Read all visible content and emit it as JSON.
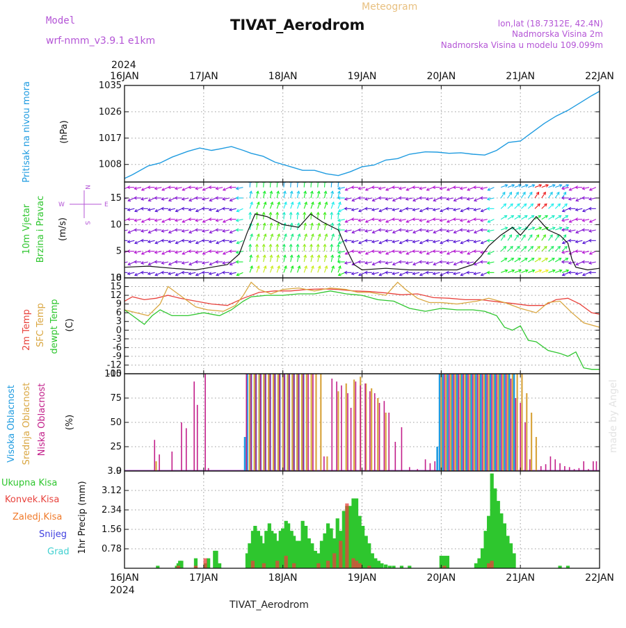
{
  "header": {
    "model_label": "Model",
    "model_name": "wrf-nmm_v3.9.1  e1km",
    "meteogram": "Meteogram",
    "title": "TIVAT_Aerodrom",
    "lonlat": "lon,lat (18.7312E, 42.4N)",
    "elevation": "Nadmorska Visina 2m",
    "model_elevation": "Nadmorska Visina u modelu 109.099m",
    "year_top": "2024",
    "year_bottom": "2024",
    "footer": "TIVAT_Aerodrom",
    "watermark": "made by Angel"
  },
  "colors": {
    "pressure": "#1e9be0",
    "temp2m": "#e8423c",
    "sfctemp": "#d9a640",
    "dewpt": "#2ec62e",
    "high_cloud": "#1e9be0",
    "mid_cloud": "#d9a640",
    "low_cloud": "#c21f8a",
    "total_precip": "#2ec62e",
    "conv_precip": "#e8423c",
    "frozen": "#f07a2a",
    "snow": "#4040e0",
    "graupel": "#40d0d0",
    "label_purple": "#b455d6",
    "meteogram_orange": "#e8c080"
  },
  "chart_data": [
    {
      "type": "line",
      "id": "pressure",
      "ylabel": [
        "Pritisak na nivou mora",
        "(hPa)"
      ],
      "x_ticks": [
        "16JAN",
        "17JAN",
        "18JAN",
        "19JAN",
        "20JAN",
        "21JAN",
        "22JAN"
      ],
      "ylim": [
        1002,
        1035
      ],
      "y_ticks": [
        1008,
        1017,
        1026,
        1035
      ],
      "grid": true,
      "series": [
        {
          "x": [
            0,
            0.1,
            0.3,
            0.45,
            0.6,
            0.8,
            0.95,
            1.1,
            1.2,
            1.35,
            1.5,
            1.6,
            1.75,
            1.9,
            2.1,
            2.25,
            2.4,
            2.55,
            2.7,
            2.85,
            3.0,
            3.15,
            3.3,
            3.45,
            3.6,
            3.8,
            3.95,
            4.1,
            4.25,
            4.4,
            4.55,
            4.7,
            4.85,
            5.0,
            5.15,
            5.3,
            5.45,
            5.6,
            5.75,
            5.9,
            6.0
          ],
          "values": [
            1003.2,
            1004.5,
            1007.5,
            1008.5,
            1010.5,
            1012.5,
            1013.6,
            1012.8,
            1013.3,
            1014.1,
            1012.8,
            1011.8,
            1010.8,
            1008.8,
            1007.2,
            1006.0,
            1006.0,
            1004.8,
            1004.2,
            1005.5,
            1007.2,
            1007.8,
            1009.5,
            1010.0,
            1011.5,
            1012.3,
            1012.2,
            1011.8,
            1012.0,
            1011.5,
            1011.2,
            1012.8,
            1015.5,
            1016.0,
            1019.0,
            1022.0,
            1024.5,
            1026.5,
            1029.0,
            1031.5,
            1033.0
          ]
        }
      ]
    },
    {
      "type": "line",
      "id": "wind",
      "ylabel": [
        "10m Vjetar",
        "Brzina i Pravac",
        "(m/s)"
      ],
      "compass": [
        "N",
        "E",
        "S",
        "W"
      ],
      "ylim": [
        0,
        18
      ],
      "y_ticks": [
        0,
        5,
        10,
        15
      ],
      "grid": true,
      "series": [
        {
          "name": "speed",
          "x": [
            0,
            0.3,
            0.6,
            0.9,
            1.1,
            1.3,
            1.45,
            1.55,
            1.65,
            1.8,
            2.0,
            2.2,
            2.35,
            2.5,
            2.7,
            2.8,
            2.9,
            3.0,
            3.3,
            3.6,
            3.9,
            4.2,
            4.4,
            4.5,
            4.6,
            4.75,
            4.9,
            5.0,
            5.2,
            5.35,
            5.5,
            5.6,
            5.65,
            5.7,
            5.85,
            6.0
          ],
          "values": [
            2,
            2.2,
            1.8,
            1.5,
            2.0,
            2.5,
            4.5,
            8.5,
            12.0,
            11.5,
            10.0,
            9.5,
            12.0,
            10.5,
            9.0,
            5.5,
            2.5,
            1.5,
            1.8,
            1.5,
            1.5,
            1.5,
            2.5,
            4.0,
            6.0,
            8.0,
            9.5,
            8.0,
            11.5,
            9.0,
            8.0,
            6.5,
            3.5,
            2.0,
            1.5,
            1.8
          ]
        }
      ]
    },
    {
      "type": "line",
      "id": "temperature",
      "ylabel": [
        "2m Temp",
        "SFC Temp",
        "dewpt Temp",
        "(C)"
      ],
      "ylim": [
        -15,
        18
      ],
      "y_ticks": [
        -15,
        -12,
        -9,
        -6,
        -3,
        0,
        3,
        6,
        9,
        12,
        15,
        18
      ],
      "grid": true,
      "series": [
        {
          "name": "2m Temp",
          "x": [
            0,
            0.1,
            0.25,
            0.4,
            0.55,
            0.7,
            0.9,
            1.1,
            1.3,
            1.5,
            1.7,
            1.9,
            2.1,
            2.3,
            2.5,
            2.7,
            2.9,
            3.1,
            3.3,
            3.5,
            3.7,
            3.9,
            4.1,
            4.3,
            4.5,
            4.7,
            4.9,
            5.1,
            5.3,
            5.45,
            5.6,
            5.75,
            5.9,
            6.0
          ],
          "values": [
            10,
            11.5,
            10.5,
            11,
            12,
            11,
            10,
            9,
            8.5,
            11,
            13,
            13.5,
            13.5,
            14,
            14.2,
            14,
            13.5,
            13.3,
            12.8,
            12.2,
            12.5,
            11.2,
            11,
            10.5,
            10.5,
            9.8,
            9.2,
            8.5,
            8.5,
            10.5,
            11,
            9,
            6,
            5.5
          ]
        },
        {
          "name": "SFC Temp",
          "x": [
            0,
            0.15,
            0.3,
            0.45,
            0.55,
            0.7,
            0.9,
            1.05,
            1.25,
            1.4,
            1.5,
            1.6,
            1.7,
            1.85,
            2.0,
            2.2,
            2.4,
            2.6,
            2.8,
            2.95,
            3.1,
            3.3,
            3.45,
            3.55,
            3.7,
            3.85,
            4.0,
            4.2,
            4.45,
            4.6,
            4.8,
            5.0,
            5.2,
            5.35,
            5.5,
            5.65,
            5.8,
            6.0
          ],
          "values": [
            7,
            6,
            5,
            9,
            15,
            12,
            8,
            7,
            6.5,
            8.5,
            12,
            16.5,
            14,
            12.5,
            14,
            14.5,
            13.5,
            14.5,
            14,
            13,
            13,
            12,
            16.5,
            14,
            11,
            9.5,
            9.5,
            9,
            10,
            11,
            9.5,
            7.5,
            6,
            9.5,
            10,
            6,
            2.5,
            1
          ]
        },
        {
          "name": "dewpt Temp",
          "x": [
            0,
            0.15,
            0.25,
            0.35,
            0.45,
            0.6,
            0.8,
            1.0,
            1.2,
            1.35,
            1.5,
            1.6,
            1.8,
            2.0,
            2.2,
            2.4,
            2.6,
            2.8,
            3.0,
            3.2,
            3.4,
            3.6,
            3.8,
            4.0,
            4.2,
            4.4,
            4.55,
            4.7,
            4.8,
            4.9,
            5.0,
            5.1,
            5.2,
            5.35,
            5.5,
            5.6,
            5.7,
            5.8,
            5.9,
            6.0
          ],
          "values": [
            7,
            4,
            2,
            5,
            7,
            5,
            5,
            6,
            5,
            7,
            10,
            11.5,
            12,
            12,
            12.5,
            12.5,
            13.5,
            12.5,
            12,
            10.5,
            10,
            7.5,
            6.5,
            7.5,
            7,
            7,
            6.5,
            5,
            1,
            0,
            1.5,
            -3.5,
            -4,
            -7,
            -8,
            -9,
            -7.5,
            -13,
            -13.5,
            -13.5
          ]
        }
      ]
    },
    {
      "type": "bar",
      "id": "cloud",
      "ylabel": [
        "Visoka Oblacnost",
        "Srednja Oblacnost",
        "Niska Oblacnost",
        "(%)"
      ],
      "ylim": [
        0,
        100
      ],
      "y_ticks": [
        0,
        25,
        50,
        75,
        100
      ],
      "grid": true,
      "series": [
        {
          "name": "Visoka Oblacnost",
          "x": [
            1.52,
            1.55,
            1.6,
            1.66,
            1.72,
            1.78,
            1.84,
            1.9,
            1.96,
            2.02,
            2.08,
            2.14,
            2.2,
            2.26,
            3.95,
            3.98,
            4.02,
            4.08,
            4.14,
            4.2,
            4.26,
            4.32,
            4.38,
            4.44,
            4.5,
            4.56,
            4.62,
            4.68,
            4.74,
            4.8,
            4.86,
            4.92
          ],
          "values": [
            35,
            100,
            100,
            100,
            100,
            100,
            100,
            100,
            100,
            100,
            100,
            100,
            100,
            100,
            25,
            100,
            100,
            100,
            100,
            100,
            100,
            100,
            100,
            100,
            100,
            100,
            100,
            100,
            100,
            100,
            100,
            100
          ]
        },
        {
          "name": "Srednja Oblacnost",
          "x": [
            0.4,
            1.58,
            1.64,
            1.7,
            1.76,
            1.82,
            1.88,
            1.94,
            2.0,
            2.06,
            2.12,
            2.18,
            2.24,
            2.3,
            2.36,
            2.42,
            2.48,
            2.56,
            2.7,
            2.8,
            2.9,
            2.98,
            3.05,
            3.12,
            3.2,
            3.3,
            4.0,
            4.06,
            4.12,
            4.18,
            4.24,
            4.3,
            4.36,
            4.42,
            4.48,
            4.54,
            4.6,
            4.66,
            4.72,
            4.78,
            4.84,
            4.9,
            4.96,
            5.02,
            5.08,
            5.14,
            5.2
          ],
          "values": [
            10,
            100,
            100,
            100,
            100,
            100,
            100,
            100,
            100,
            100,
            100,
            100,
            100,
            100,
            100,
            100,
            100,
            15,
            82,
            90,
            94,
            97,
            90,
            85,
            75,
            60,
            100,
            100,
            100,
            100,
            100,
            100,
            100,
            100,
            100,
            100,
            100,
            100,
            100,
            100,
            100,
            100,
            100,
            100,
            80,
            60,
            35
          ]
        },
        {
          "name": "Niska Oblacnost",
          "x": [
            0.38,
            0.44,
            0.6,
            0.72,
            0.78,
            0.88,
            0.92,
            1.02,
            1.06,
            1.54,
            1.6,
            1.66,
            1.72,
            1.78,
            1.84,
            1.9,
            1.96,
            2.02,
            2.08,
            2.14,
            2.2,
            2.26,
            2.32,
            2.38,
            2.52,
            2.62,
            2.68,
            2.74,
            2.82,
            2.86,
            2.92,
            2.98,
            3.04,
            3.1,
            3.16,
            3.22,
            3.28,
            3.34,
            3.42,
            3.5,
            3.6,
            3.7,
            3.8,
            3.86,
            3.92,
            4.04,
            4.1,
            4.16,
            4.22,
            4.28,
            4.34,
            4.4,
            4.46,
            4.52,
            4.58,
            4.64,
            4.7,
            4.76,
            4.82,
            4.88,
            4.94,
            5.0,
            5.06,
            5.12,
            5.26,
            5.32,
            5.38,
            5.44,
            5.5,
            5.56,
            5.62,
            5.68,
            5.74,
            5.8,
            5.86,
            5.92,
            5.96
          ],
          "values": [
            32,
            17,
            20,
            50,
            44,
            92,
            68,
            100,
            3,
            100,
            100,
            100,
            100,
            100,
            100,
            100,
            100,
            100,
            100,
            100,
            100,
            100,
            100,
            100,
            15,
            95,
            92,
            88,
            80,
            65,
            92,
            88,
            90,
            82,
            80,
            70,
            72,
            60,
            30,
            45,
            4,
            2,
            12,
            8,
            10,
            100,
            100,
            100,
            100,
            100,
            100,
            100,
            100,
            100,
            100,
            100,
            100,
            100,
            100,
            95,
            75,
            70,
            50,
            12,
            5,
            7,
            15,
            12,
            8,
            5,
            4,
            2,
            3,
            10,
            2,
            10,
            10
          ]
        }
      ]
    },
    {
      "type": "bar",
      "id": "precip",
      "ylabel": [
        "1hr Precip (mm)"
      ],
      "legend": [
        "Ukupna Kisa",
        "Konvek.Kisa",
        "Zaledj.Kisa",
        "Snijeg",
        "Grad"
      ],
      "x_ticks": [
        "16JAN",
        "17JAN",
        "18JAN",
        "19JAN",
        "20JAN",
        "21JAN",
        "22JAN"
      ],
      "ylim": [
        0,
        3.9
      ],
      "y_ticks": [
        0.78,
        1.56,
        2.34,
        3.12,
        3.9
      ],
      "grid": true,
      "series": [
        {
          "name": "Ukupna Kisa",
          "x": [
            0.42,
            0.66,
            0.68,
            0.7,
            0.72,
            0.9,
            1.02,
            1.06,
            1.14,
            1.16,
            1.2,
            1.55,
            1.58,
            1.62,
            1.65,
            1.69,
            1.72,
            1.76,
            1.79,
            1.83,
            1.86,
            1.9,
            1.93,
            1.97,
            2.0,
            2.04,
            2.07,
            2.11,
            2.14,
            2.18,
            2.21,
            2.25,
            2.29,
            2.33,
            2.37,
            2.41,
            2.45,
            2.49,
            2.53,
            2.57,
            2.61,
            2.65,
            2.69,
            2.73,
            2.77,
            2.81,
            2.85,
            2.89,
            2.93,
            2.97,
            3.01,
            3.05,
            3.09,
            3.13,
            3.17,
            3.21,
            3.25,
            3.3,
            3.35,
            3.4,
            3.5,
            3.6,
            4.0,
            4.04,
            4.08,
            4.44,
            4.48,
            4.52,
            4.56,
            4.6,
            4.64,
            4.68,
            4.72,
            4.76,
            4.8,
            4.84,
            4.88,
            4.92,
            5.5,
            5.6
          ],
          "values": [
            0.1,
            0.1,
            0.2,
            0.3,
            0.3,
            0.4,
            0.2,
            0.4,
            0.7,
            0.7,
            0.2,
            0.6,
            1.0,
            1.5,
            1.7,
            1.5,
            1.3,
            1.0,
            1.5,
            1.8,
            1.5,
            1.4,
            1.1,
            1.5,
            1.6,
            1.9,
            1.8,
            1.5,
            1.3,
            1.1,
            1.1,
            1.9,
            1.7,
            1.2,
            1.0,
            0.7,
            0.6,
            1.1,
            1.4,
            1.8,
            1.6,
            1.2,
            2.0,
            1.5,
            2.3,
            2.5,
            2.5,
            2.8,
            2.8,
            2.1,
            1.7,
            1.3,
            1.0,
            0.6,
            0.4,
            0.3,
            0.2,
            0.15,
            0.1,
            0.1,
            0.1,
            0.1,
            0.5,
            0.5,
            0.5,
            0.2,
            0.4,
            0.8,
            1.5,
            2.1,
            3.8,
            3.2,
            2.7,
            2.2,
            1.8,
            1.3,
            1.0,
            0.6,
            0.1,
            0.1
          ]
        },
        {
          "name": "Konvek.Kisa",
          "x": [
            0.68,
            0.9,
            1.02,
            1.62,
            1.76,
            1.93,
            2.04,
            2.14,
            2.45,
            2.57,
            2.65,
            2.73,
            2.81,
            2.89,
            2.93,
            2.97,
            3.09,
            4.04,
            4.6,
            4.64
          ],
          "values": [
            0.1,
            0.1,
            0.4,
            0.3,
            0.2,
            0.3,
            0.5,
            0.2,
            0.2,
            0.3,
            0.6,
            1.1,
            2.6,
            0.4,
            0.3,
            0.2,
            0.1,
            0.1,
            0.2,
            0.3
          ]
        }
      ]
    }
  ]
}
